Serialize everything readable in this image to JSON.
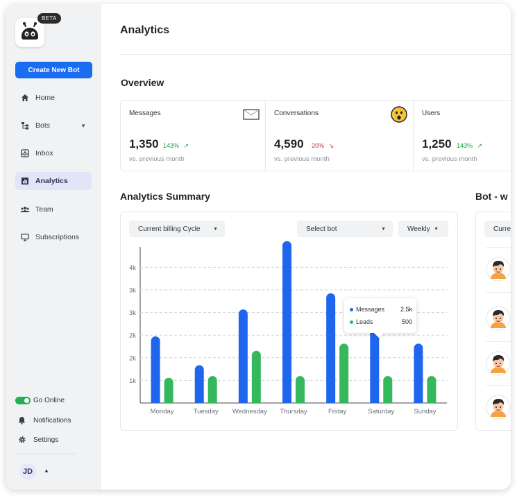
{
  "sidebar": {
    "beta_badge": "BETA",
    "logo_icon": "robot-icon",
    "create_button": "Create New Bot",
    "nav": [
      {
        "label": "Home",
        "icon": "home-icon"
      },
      {
        "label": "Bots",
        "icon": "bots-icon"
      },
      {
        "label": "Inbox",
        "icon": "inbox-icon"
      },
      {
        "label": "Analytics",
        "icon": "analytics-icon",
        "active": true
      },
      {
        "label": "Team",
        "icon": "team-icon"
      },
      {
        "label": "Subscriptions",
        "icon": "subscriptions-icon"
      }
    ],
    "go_online": "Go Online",
    "notifications": "Notifications",
    "settings": "Settings",
    "user_initials": "JD"
  },
  "header": {
    "title": "Analytics"
  },
  "overview": {
    "title": "Overview",
    "cards": [
      {
        "label": "Messages",
        "value": "1,350",
        "change": "143%",
        "trend": "up",
        "sub": "vs. previous month",
        "icon": "envelope-icon"
      },
      {
        "label": "Conversations",
        "value": "4,590",
        "change": "20%",
        "trend": "down",
        "sub": "vs. previous month",
        "icon": "surprised-emoji-icon"
      },
      {
        "label": "Users",
        "value": "1,250",
        "change": "143%",
        "trend": "up",
        "sub": "vs. previous month"
      }
    ]
  },
  "summary": {
    "title": "Analytics Summary",
    "filter_cycle": "Current billing Cycle",
    "filter_bot": "Select bot",
    "filter_period": "Weekly"
  },
  "bot_panel": {
    "title": "Bot - w",
    "filter": "Curre"
  },
  "tooltip": {
    "messages_label": "Messages",
    "messages_value": "2.5k",
    "leads_label": "Leads",
    "leads_value": "500"
  },
  "colors": {
    "accent": "#1a6cf0",
    "messages": "#1f66ee",
    "leads": "#35b85b"
  },
  "chart_data": {
    "type": "bar",
    "categories": [
      "Monday",
      "Tuesday",
      "Wednesday",
      "Thursday",
      "Friday",
      "Saturday",
      "Sunday"
    ],
    "y_tick_labels": [
      "1k",
      "2k",
      "2k",
      "3k",
      "3k",
      "4k"
    ],
    "ylim": [
      0,
      4.3
    ],
    "grid": true,
    "series": [
      {
        "name": "Messages",
        "values": [
          1.85,
          1.05,
          2.6,
          4.5,
          3.05,
          2.6,
          1.65
        ]
      },
      {
        "name": "Leads",
        "values": [
          0.7,
          0.75,
          1.45,
          0.75,
          1.65,
          0.75,
          0.75
        ]
      }
    ]
  }
}
